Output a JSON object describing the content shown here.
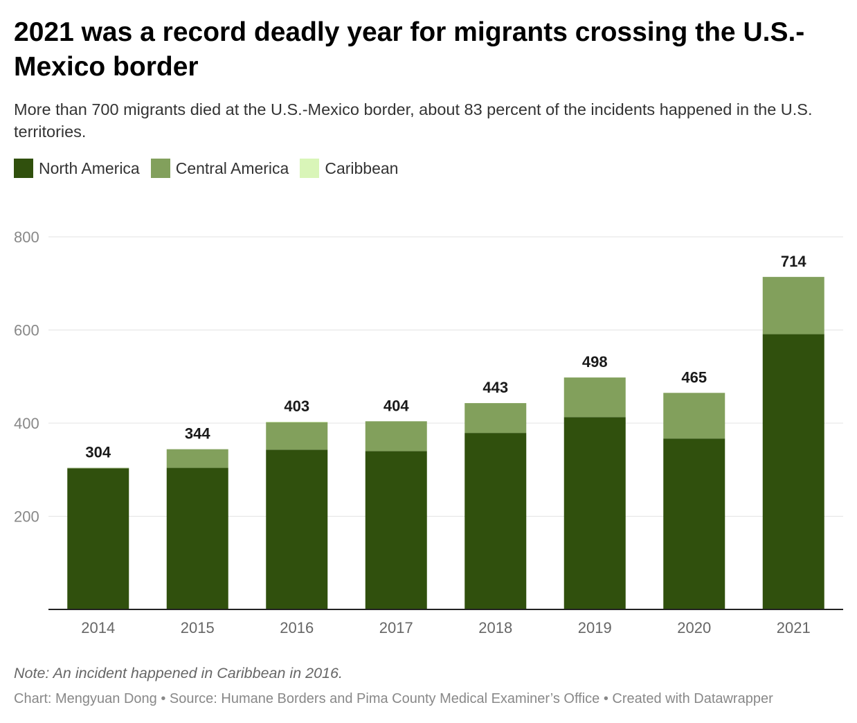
{
  "title": "2021 was a record deadly year for migrants crossing the U.S.-Mexico border",
  "subtitle": "More than 700 migrants died at the U.S.-Mexico border, about 83 percent of the incidents happened in the U.S. territories.",
  "legend": [
    {
      "label": "North America",
      "color": "#30500d"
    },
    {
      "label": "Central America",
      "color": "#82a05c"
    },
    {
      "label": "Caribbean",
      "color": "#d9f5b8"
    }
  ],
  "note": "Note: An incident happened in Caribbean in 2016.",
  "credit": "Chart: Mengyuan Dong • Source: Humane Borders and Pima County Medical Examiner’s Office • Created with Datawrapper",
  "chart_data": {
    "type": "bar",
    "stacked": true,
    "categories": [
      "2014",
      "2015",
      "2016",
      "2017",
      "2018",
      "2019",
      "2020",
      "2021"
    ],
    "series": [
      {
        "name": "North America",
        "color": "#30500d",
        "values": [
          303,
          304,
          343,
          340,
          379,
          413,
          367,
          591
        ]
      },
      {
        "name": "Central America",
        "color": "#82a05c",
        "values": [
          1,
          40,
          59,
          64,
          64,
          85,
          98,
          123
        ]
      },
      {
        "name": "Caribbean",
        "color": "#d9f5b8",
        "values": [
          0,
          0,
          1,
          0,
          0,
          0,
          0,
          0
        ]
      }
    ],
    "totals": [
      304,
      344,
      403,
      404,
      443,
      498,
      465,
      714
    ],
    "yticks": [
      200,
      400,
      600,
      800
    ],
    "ylim": [
      0,
      800
    ],
    "grid": true,
    "legend_position": "top-left"
  }
}
